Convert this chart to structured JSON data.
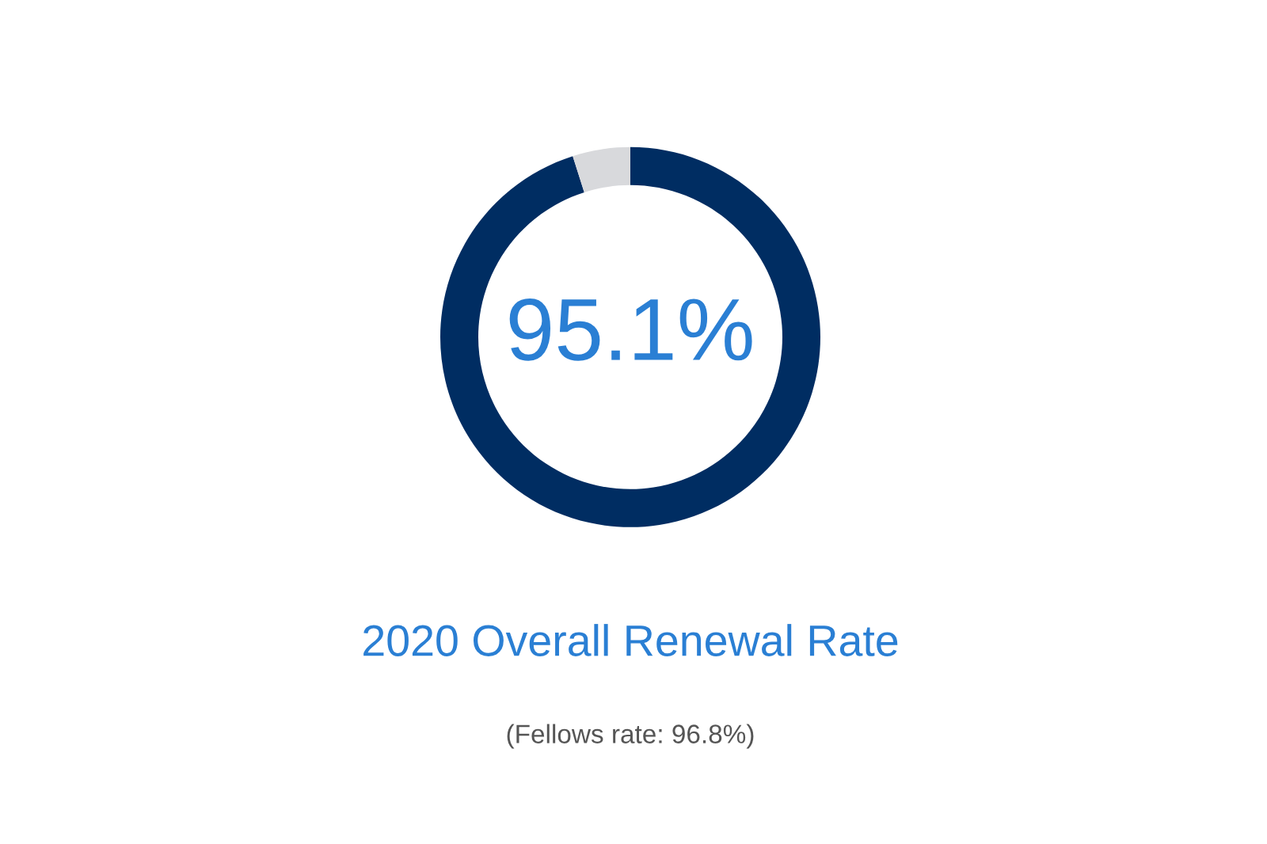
{
  "chart_data": {
    "type": "donut",
    "title": "2020 Overall Renewal Rate",
    "categories": [
      null,
      null
    ],
    "values": [
      95.1,
      4.9
    ],
    "colors": [
      "#002d62",
      "#d8d9dc"
    ],
    "value_labels": [
      "95.1%",
      null
    ],
    "annotations": [
      "(Fellows rate: 96.8%)"
    ],
    "legend": false
  }
}
